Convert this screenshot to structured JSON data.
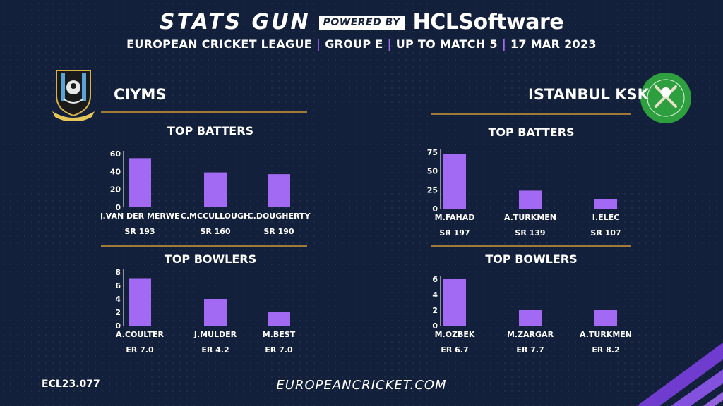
{
  "header": {
    "brand": "STATS GUN",
    "powered_by": "POWERED BY",
    "sponsor": "HCLSoftware",
    "subtitle_parts": [
      "EUROPEAN CRICKET LEAGUE",
      "GROUP  E",
      "UP TO MATCH  5",
      "17 MAR 2023"
    ]
  },
  "colors": {
    "background": "#13203b",
    "bar": "#a26af2",
    "divider": "#a07a38",
    "accent": "#a26af2"
  },
  "teams": {
    "left": {
      "name": "CIYMS",
      "logo_icon": "ciyms-crest-icon"
    },
    "right": {
      "name": "ISTANBUL KSK",
      "logo_icon": "istanbul-ksk-badge-icon"
    }
  },
  "chart_data": [
    {
      "id": "ciyms-batters",
      "type": "bar",
      "title": "TOP BATTERS",
      "categories": [
        "J.VAN DER MERWE",
        "C.MCCULLOUGH",
        "C.DOUGHERTY"
      ],
      "values": [
        55,
        39,
        37
      ],
      "sublabels": [
        "SR 193",
        "SR 160",
        "SR 190"
      ],
      "ylim": [
        0,
        60
      ],
      "yticks": [
        0,
        20,
        40,
        60
      ]
    },
    {
      "id": "ciyms-bowlers",
      "type": "bar",
      "title": "TOP BOWLERS",
      "categories": [
        "A.COULTER",
        "J.MULDER",
        "M.BEST"
      ],
      "values": [
        7,
        4,
        2
      ],
      "sublabels": [
        "ER 7.0",
        "ER 4.2",
        "ER 7.0"
      ],
      "ylim": [
        0,
        8
      ],
      "yticks": [
        0,
        2,
        4,
        6,
        8
      ]
    },
    {
      "id": "ksk-batters",
      "type": "bar",
      "title": "TOP BATTERS",
      "categories": [
        "M.FAHAD",
        "A.TURKMEN",
        "I.ELEC"
      ],
      "values": [
        73,
        24,
        13
      ],
      "sublabels": [
        "SR 197",
        "SR 139",
        "SR 107"
      ],
      "ylim": [
        0,
        75
      ],
      "yticks": [
        0,
        25,
        50,
        75
      ]
    },
    {
      "id": "ksk-bowlers",
      "type": "bar",
      "title": "TOP BOWLERS",
      "categories": [
        "M.OZBEK",
        "M.ZARGAR",
        "A.TURKMEN"
      ],
      "values": [
        6,
        2,
        2
      ],
      "sublabels": [
        "ER 6.7",
        "ER 7.7",
        "ER 8.2"
      ],
      "ylim": [
        0,
        6
      ],
      "yticks": [
        0,
        2,
        4,
        6
      ]
    }
  ],
  "footer": {
    "code": "ECL23.077",
    "url": "EUROPEANCRICKET.COM"
  }
}
